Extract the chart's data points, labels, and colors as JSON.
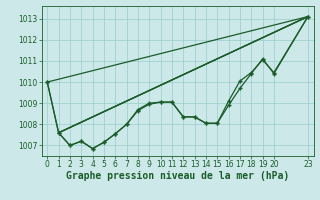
{
  "xlabel": "Graphe pression niveau de la mer (hPa)",
  "bg_color": "#cce8e8",
  "line_color": "#1a5c2a",
  "grid_color": "#99cccc",
  "xlim": [
    -0.5,
    23.5
  ],
  "ylim": [
    1006.5,
    1013.6
  ],
  "yticks": [
    1007,
    1008,
    1009,
    1010,
    1011,
    1012,
    1013
  ],
  "xticks": [
    0,
    1,
    2,
    3,
    4,
    5,
    6,
    7,
    8,
    9,
    10,
    11,
    12,
    13,
    14,
    15,
    16,
    17,
    18,
    19,
    20,
    23
  ],
  "series_with_markers": [
    {
      "x": [
        0,
        1,
        2,
        3,
        4,
        5,
        6,
        7,
        8,
        9,
        10,
        11,
        12,
        13,
        14,
        15,
        16,
        17,
        18,
        19,
        20,
        23
      ],
      "y": [
        1010.0,
        1007.6,
        1007.0,
        1007.2,
        1006.85,
        1007.15,
        1007.55,
        1008.0,
        1008.7,
        1009.0,
        1009.05,
        1009.05,
        1008.35,
        1008.35,
        1008.05,
        1008.05,
        1008.9,
        1009.7,
        1010.4,
        1011.1,
        1010.4,
        1013.1
      ]
    },
    {
      "x": [
        0,
        1,
        2,
        3,
        4,
        5,
        6,
        7,
        8,
        9,
        10,
        11,
        12,
        13,
        14,
        15,
        16,
        17,
        18,
        19,
        20,
        23
      ],
      "y": [
        1010.0,
        1007.6,
        1007.0,
        1007.2,
        1006.85,
        1007.15,
        1007.55,
        1008.0,
        1008.65,
        1008.95,
        1009.05,
        1009.05,
        1008.35,
        1008.35,
        1008.05,
        1008.05,
        1009.1,
        1010.05,
        1010.45,
        1011.05,
        1010.45,
        1013.1
      ]
    }
  ],
  "series_straight": [
    {
      "x": [
        1,
        23
      ],
      "y": [
        1007.6,
        1013.1
      ]
    },
    {
      "x": [
        1,
        23
      ],
      "y": [
        1007.6,
        1013.1
      ]
    },
    {
      "x": [
        1,
        23
      ],
      "y": [
        1007.6,
        1013.1
      ]
    },
    {
      "x": [
        0,
        23
      ],
      "y": [
        1010.0,
        1013.1
      ]
    }
  ],
  "marker": "+",
  "marker_size": 3.5,
  "line_width": 0.9,
  "xlabel_fontsize": 7,
  "tick_fontsize": 5.5,
  "xlabel_bold": true
}
